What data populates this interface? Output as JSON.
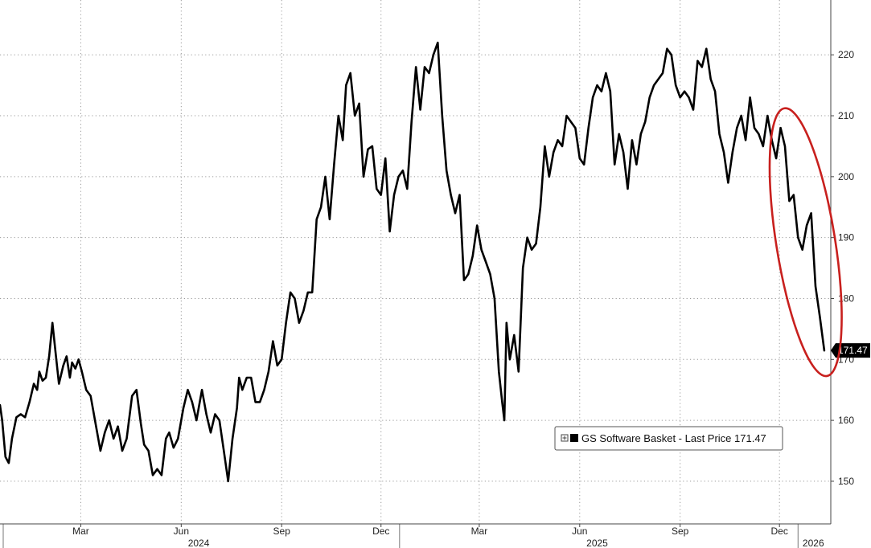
{
  "chart_data": {
    "type": "line",
    "title": "",
    "xlabel": "",
    "ylabel": "",
    "ylim": [
      143,
      229
    ],
    "y_ticks": [
      150,
      160,
      170,
      180,
      190,
      200,
      210,
      220
    ],
    "y_tick_labels": [
      "150",
      "160",
      "170",
      "180",
      "190",
      "200",
      "210",
      "220"
    ],
    "x_range": [
      "2024-01-01",
      "2026-01-31"
    ],
    "month_ticks": [
      {
        "label": "Mar",
        "date": "2024-03-15"
      },
      {
        "label": "Jun",
        "date": "2024-06-15"
      },
      {
        "label": "Sep",
        "date": "2024-09-15"
      },
      {
        "label": "Dec",
        "date": "2024-12-15"
      },
      {
        "label": "Mar",
        "date": "2025-03-15"
      },
      {
        "label": "Jun",
        "date": "2025-06-15"
      },
      {
        "label": "Sep",
        "date": "2025-09-15"
      },
      {
        "label": "Dec",
        "date": "2025-12-15"
      }
    ],
    "year_labels": [
      {
        "label": "2024",
        "date": "2024-07-01"
      },
      {
        "label": "2025",
        "date": "2025-07-01"
      },
      {
        "label": "2026",
        "date": "2026-01-15"
      }
    ],
    "year_dividers": [
      "2025-01-01",
      "2026-01-01"
    ],
    "grid": true,
    "legend_position": "bottom-right",
    "series": [
      {
        "name": "GS Software Basket - Last Price 171.47",
        "color": "#000000",
        "last_value": 171.47,
        "last_value_label": "171.47",
        "x": [
          "2024-01-01",
          "2024-01-03",
          "2024-01-06",
          "2024-01-09",
          "2024-01-12",
          "2024-01-16",
          "2024-01-20",
          "2024-01-24",
          "2024-01-28",
          "2024-02-01",
          "2024-02-04",
          "2024-02-06",
          "2024-02-09",
          "2024-02-12",
          "2024-02-15",
          "2024-02-18",
          "2024-02-21",
          "2024-02-24",
          "2024-02-28",
          "2024-03-02",
          "2024-03-05",
          "2024-03-07",
          "2024-03-10",
          "2024-03-13",
          "2024-03-16",
          "2024-03-20",
          "2024-03-24",
          "2024-03-28",
          "2024-04-02",
          "2024-04-06",
          "2024-04-10",
          "2024-04-14",
          "2024-04-18",
          "2024-04-22",
          "2024-04-26",
          "2024-05-01",
          "2024-05-05",
          "2024-05-09",
          "2024-05-12",
          "2024-05-16",
          "2024-05-20",
          "2024-05-24",
          "2024-05-28",
          "2024-06-01",
          "2024-06-04",
          "2024-06-08",
          "2024-06-12",
          "2024-06-17",
          "2024-06-21",
          "2024-06-25",
          "2024-06-29",
          "2024-07-04",
          "2024-07-08",
          "2024-07-12",
          "2024-07-16",
          "2024-07-20",
          "2024-07-24",
          "2024-07-28",
          "2024-08-01",
          "2024-08-05",
          "2024-08-07",
          "2024-08-10",
          "2024-08-14",
          "2024-08-18",
          "2024-08-22",
          "2024-08-26",
          "2024-08-30",
          "2024-09-03",
          "2024-09-07",
          "2024-09-11",
          "2024-09-15",
          "2024-09-19",
          "2024-09-23",
          "2024-09-27",
          "2024-10-01",
          "2024-10-05",
          "2024-10-09",
          "2024-10-13",
          "2024-10-17",
          "2024-10-21",
          "2024-10-25",
          "2024-10-29",
          "2024-11-02",
          "2024-11-06",
          "2024-11-10",
          "2024-11-13",
          "2024-11-17",
          "2024-11-21",
          "2024-11-25",
          "2024-11-29",
          "2024-12-03",
          "2024-12-07",
          "2024-12-11",
          "2024-12-15",
          "2024-12-19",
          "2024-12-23",
          "2024-12-27",
          "2024-12-31",
          "2025-01-04",
          "2025-01-08",
          "2025-01-12",
          "2025-01-16",
          "2025-01-20",
          "2025-01-24",
          "2025-01-28",
          "2025-02-01",
          "2025-02-05",
          "2025-02-09",
          "2025-02-13",
          "2025-02-17",
          "2025-02-21",
          "2025-02-25",
          "2025-03-01",
          "2025-03-05",
          "2025-03-09",
          "2025-03-13",
          "2025-03-17",
          "2025-03-21",
          "2025-03-25",
          "2025-03-29",
          "2025-04-02",
          "2025-04-05",
          "2025-04-07",
          "2025-04-09",
          "2025-04-12",
          "2025-04-16",
          "2025-04-20",
          "2025-04-24",
          "2025-04-28",
          "2025-05-02",
          "2025-05-06",
          "2025-05-10",
          "2025-05-14",
          "2025-05-18",
          "2025-05-22",
          "2025-05-26",
          "2025-05-30",
          "2025-06-03",
          "2025-06-07",
          "2025-06-11",
          "2025-06-15",
          "2025-06-19",
          "2025-06-23",
          "2025-06-27",
          "2025-07-01",
          "2025-07-05",
          "2025-07-09",
          "2025-07-13",
          "2025-07-17",
          "2025-07-21",
          "2025-07-25",
          "2025-07-29",
          "2025-08-02",
          "2025-08-06",
          "2025-08-10",
          "2025-08-14",
          "2025-08-18",
          "2025-08-22",
          "2025-08-26",
          "2025-08-30",
          "2025-09-03",
          "2025-09-07",
          "2025-09-11",
          "2025-09-15",
          "2025-09-19",
          "2025-09-23",
          "2025-09-27",
          "2025-10-01",
          "2025-10-05",
          "2025-10-09",
          "2025-10-13",
          "2025-10-17",
          "2025-10-21",
          "2025-10-25",
          "2025-10-29",
          "2025-11-02",
          "2025-11-06",
          "2025-11-10",
          "2025-11-14",
          "2025-11-18",
          "2025-11-22",
          "2025-11-26",
          "2025-11-30",
          "2025-12-04",
          "2025-12-08",
          "2025-12-12",
          "2025-12-16",
          "2025-12-20",
          "2025-12-24",
          "2025-12-28",
          "2026-01-01",
          "2026-01-05",
          "2026-01-09",
          "2026-01-13",
          "2026-01-17",
          "2026-01-21",
          "2026-01-25"
        ],
        "values": [
          162.5,
          160.0,
          154.0,
          153.0,
          157.0,
          160.5,
          161.0,
          160.5,
          163.0,
          166.0,
          165.0,
          168.0,
          166.5,
          167.0,
          170.5,
          176.0,
          171.0,
          166.0,
          169.0,
          170.5,
          167.0,
          169.5,
          168.5,
          170.0,
          168.0,
          165.0,
          164.0,
          160.0,
          155.0,
          158.0,
          160.0,
          157.0,
          159.0,
          155.0,
          157.0,
          164.0,
          165.0,
          159.5,
          156.0,
          155.0,
          151.0,
          152.0,
          151.0,
          157.0,
          158.0,
          155.5,
          157.0,
          162.0,
          165.0,
          163.0,
          160.0,
          165.0,
          161.0,
          158.0,
          161.0,
          160.0,
          155.0,
          150.0,
          157.0,
          162.0,
          167.0,
          165.0,
          167.0,
          167.0,
          163.0,
          163.0,
          165.0,
          168.0,
          173.0,
          169.0,
          170.0,
          176.0,
          181.0,
          180.0,
          176.0,
          178.0,
          181.0,
          181.0,
          193.0,
          195.0,
          200.0,
          193.0,
          202.0,
          210.0,
          206.0,
          215.0,
          217.0,
          210.0,
          212.0,
          200.0,
          204.5,
          205.0,
          198.0,
          197.0,
          203.0,
          191.0,
          197.0,
          200.0,
          201.0,
          198.0,
          209.0,
          218.0,
          211.0,
          218.0,
          217.0,
          220.0,
          222.0,
          210.0,
          201.0,
          197.0,
          194.0,
          197.0,
          183.0,
          184.0,
          187.0,
          192.0,
          188.0,
          186.0,
          184.0,
          180.0,
          168.0,
          163.0,
          160.0,
          176.0,
          170.0,
          174.0,
          168.0,
          185.0,
          190.0,
          188.0,
          189.0,
          195.0,
          205.0,
          200.0,
          204.0,
          206.0,
          205.0,
          210.0,
          209.0,
          208.0,
          203.0,
          202.0,
          208.0,
          213.0,
          215.0,
          214.0,
          217.0,
          214.0,
          202.0,
          207.0,
          204.0,
          198.0,
          206.0,
          202.0,
          207.0,
          209.0,
          213.0,
          215.0,
          216.0,
          217.0,
          221.0,
          220.0,
          215.0,
          213.0,
          214.0,
          213.0,
          211.0,
          219.0,
          218.0,
          221.0,
          216.0,
          214.0,
          207.0,
          204.0,
          199.0,
          204.0,
          208.0,
          210.0,
          206.0,
          213.0,
          208.0,
          207.0,
          205.0,
          210.0,
          206.0,
          203.0,
          208.0,
          205.0,
          196.0,
          197.0,
          190.0,
          188.0,
          192.0,
          194.0,
          182.0,
          177.0,
          171.47
        ]
      }
    ],
    "annotations": [
      {
        "type": "ellipse",
        "color": "#c8201e",
        "x_from": "2025-12-12",
        "x_to": "2026-02-04",
        "y_from": 167.0,
        "y_to": 211.5,
        "rotation_deg": -9
      }
    ]
  },
  "legend": {
    "label": "GS Software Basket - Last Price 171.47",
    "checkbox_icon": "expand-box-icon"
  }
}
